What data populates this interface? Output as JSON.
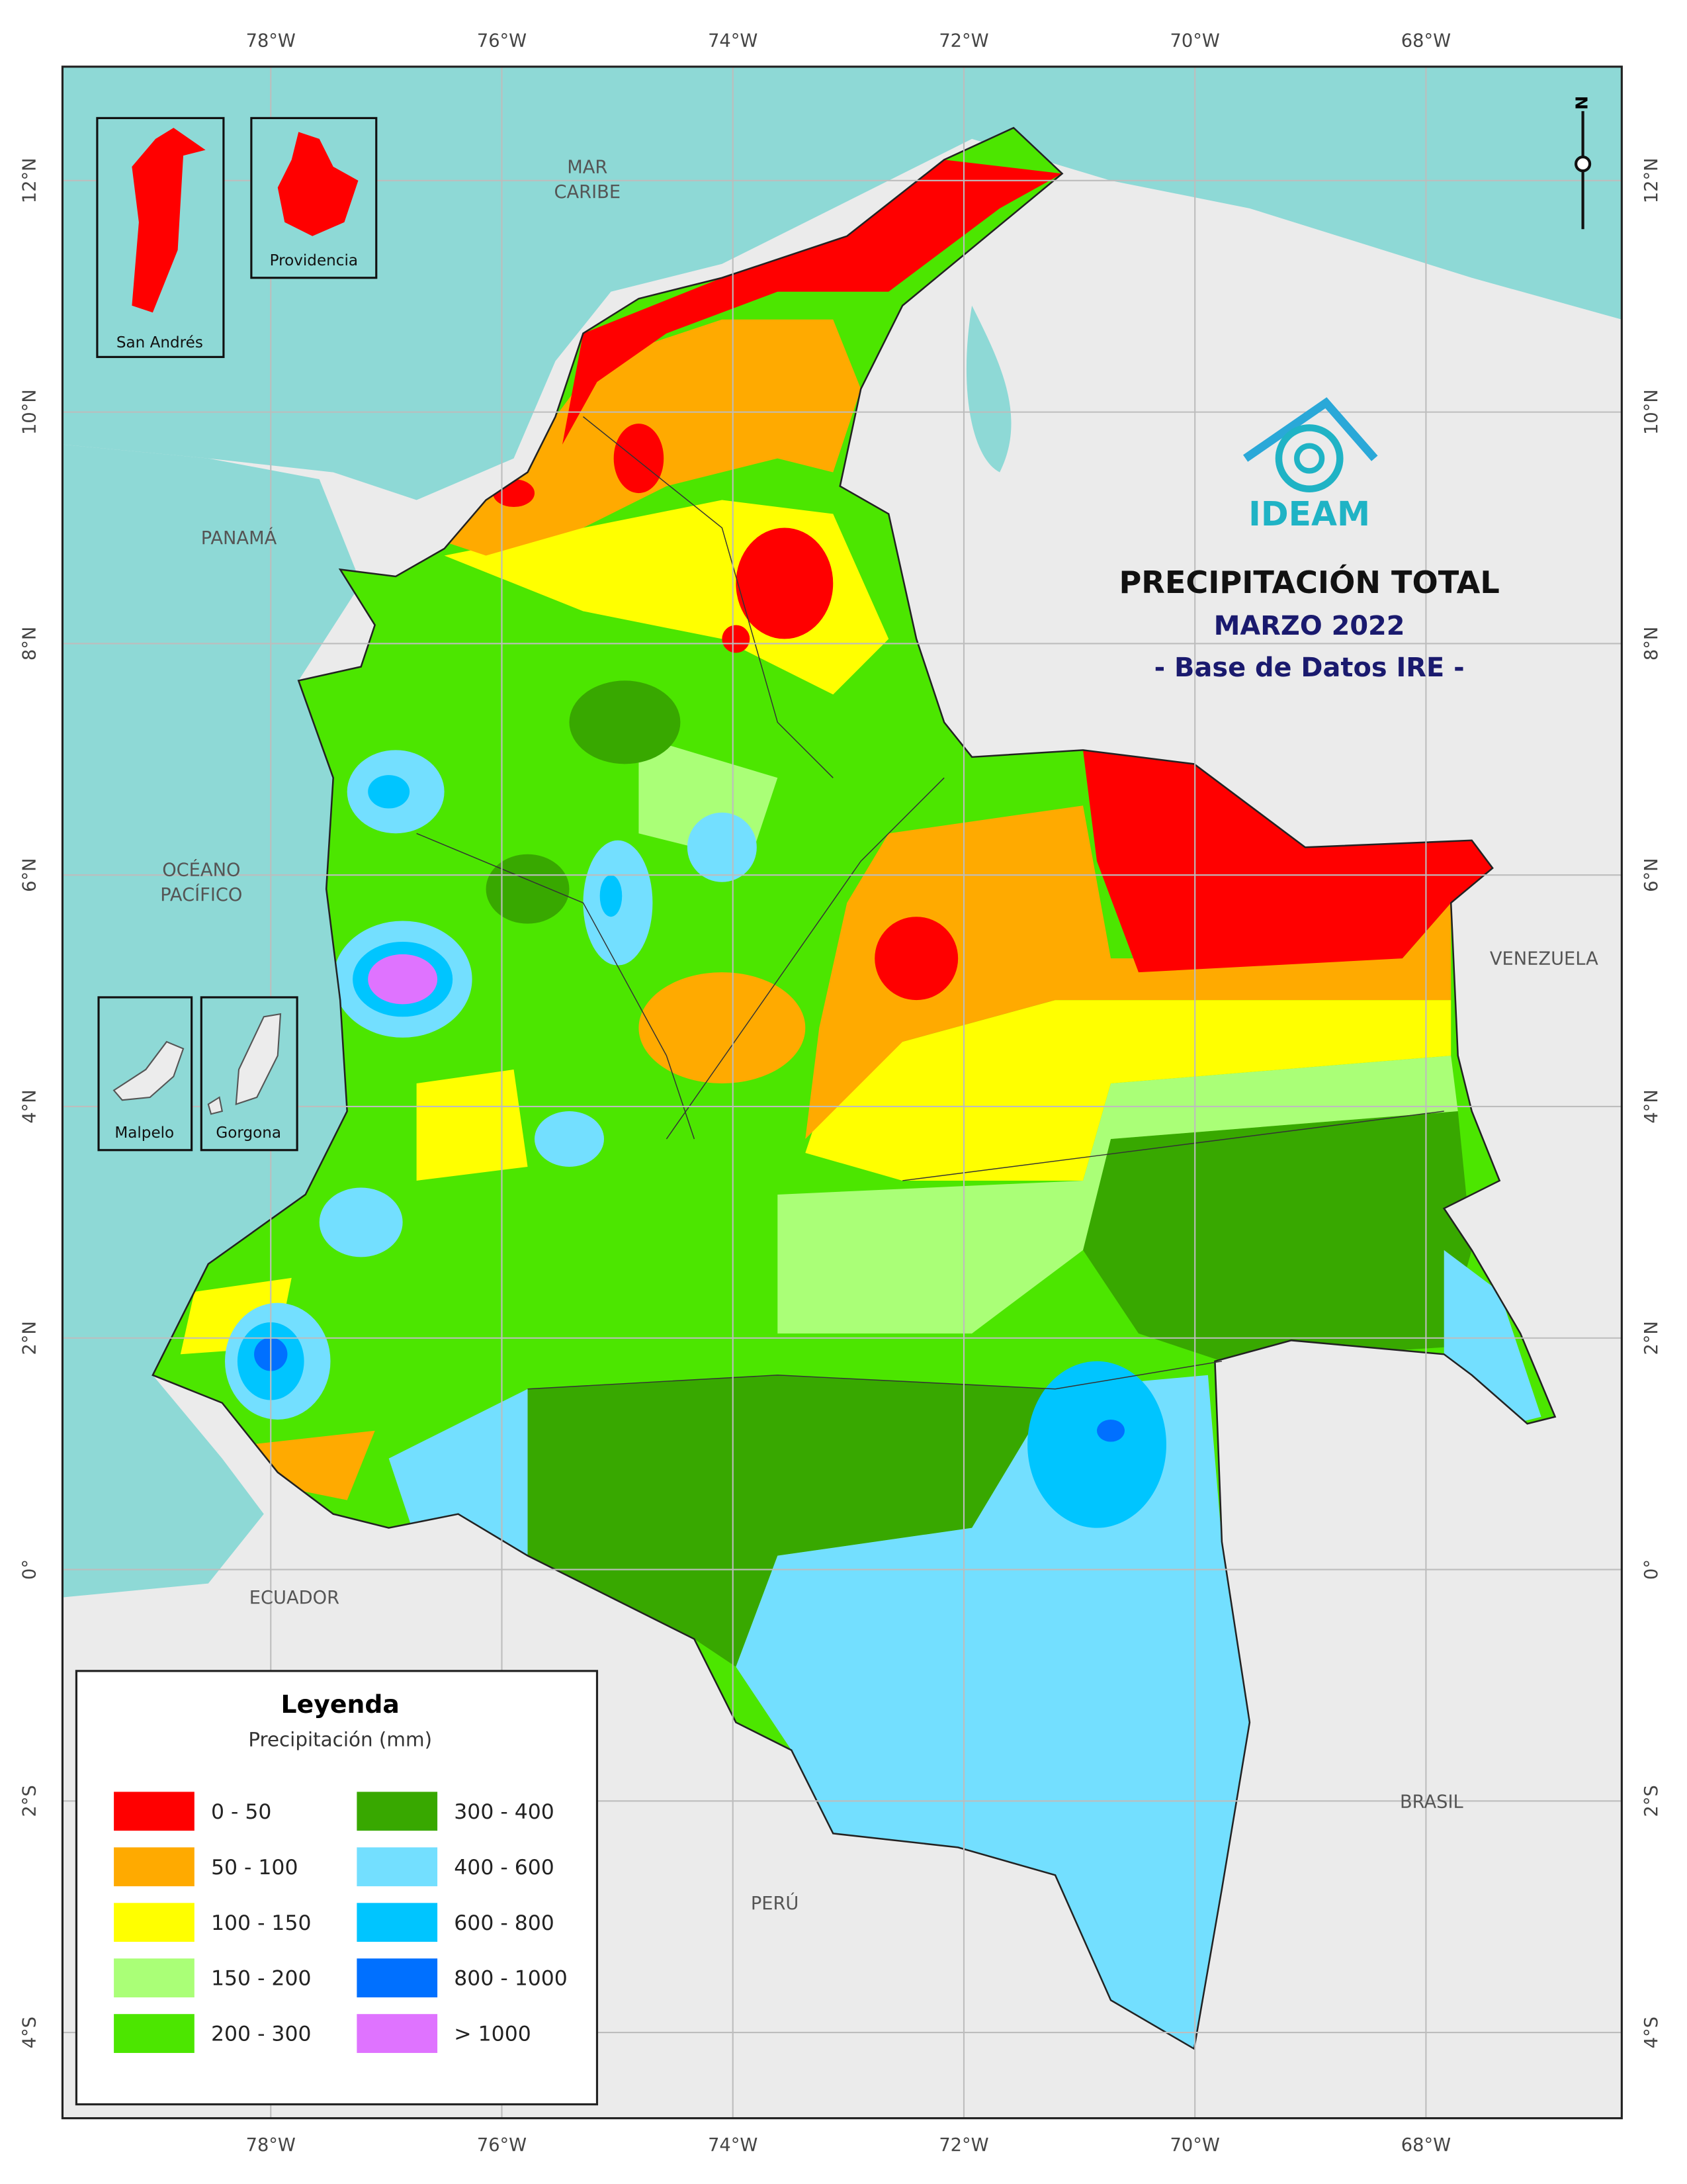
{
  "title": "PRECIPITACIÓN TOTAL",
  "subtitle": "MARZO 2022",
  "source": "- Base de Datos IRE -",
  "logo": "IDEAM",
  "north": "N",
  "places": [
    {
      "lines": [
        "MAR",
        "CARIBE"
      ]
    },
    {
      "lines": [
        "PANAMÁ"
      ]
    },
    {
      "lines": [
        "OCÉANO",
        "PACÍFICO"
      ]
    },
    {
      "lines": [
        "VENEZUELA"
      ]
    },
    {
      "lines": [
        "ECUADOR"
      ]
    },
    {
      "lines": [
        "PERÚ"
      ]
    },
    {
      "lines": [
        "BRASIL"
      ]
    }
  ],
  "insets": [
    "San Andrés",
    "Providencia",
    "Malpelo",
    "Gorgona"
  ],
  "graticule": {
    "lon": [
      {
        "value": -78,
        "label": "78°W"
      },
      {
        "value": -76,
        "label": "76°W"
      },
      {
        "value": -74,
        "label": "74°W"
      },
      {
        "value": -72,
        "label": "72°W"
      },
      {
        "value": -70,
        "label": "70°W"
      },
      {
        "value": -68,
        "label": "68°W"
      }
    ],
    "lat": [
      {
        "value": 12,
        "label": "12°N"
      },
      {
        "value": 10,
        "label": "10°N"
      },
      {
        "value": 8,
        "label": "8°N"
      },
      {
        "value": 6,
        "label": "6°N"
      },
      {
        "value": 4,
        "label": "4°N"
      },
      {
        "value": 2,
        "label": "2°N"
      },
      {
        "value": 0,
        "label": "0°"
      },
      {
        "value": -2,
        "label": "2°S"
      },
      {
        "value": -4,
        "label": "4°S"
      }
    ]
  },
  "legend": {
    "title": "Leyenda",
    "subtitle": "Precipitación (mm)",
    "items": [
      {
        "label": "0 - 50",
        "color": "#ff0000"
      },
      {
        "label": "50 - 100",
        "color": "#ffaa00"
      },
      {
        "label": "100 - 150",
        "color": "#ffff00"
      },
      {
        "label": "150 - 200",
        "color": "#aaff77"
      },
      {
        "label": "200 - 300",
        "color": "#4ce600"
      },
      {
        "label": "300 - 400",
        "color": "#38a800"
      },
      {
        "label": "400 - 600",
        "color": "#73dfff"
      },
      {
        "label": "600 - 800",
        "color": "#00c5ff"
      },
      {
        "label": "800 - 1000",
        "color": "#0070ff"
      },
      {
        "label": "> 1000",
        "color": "#df73ff"
      }
    ]
  }
}
